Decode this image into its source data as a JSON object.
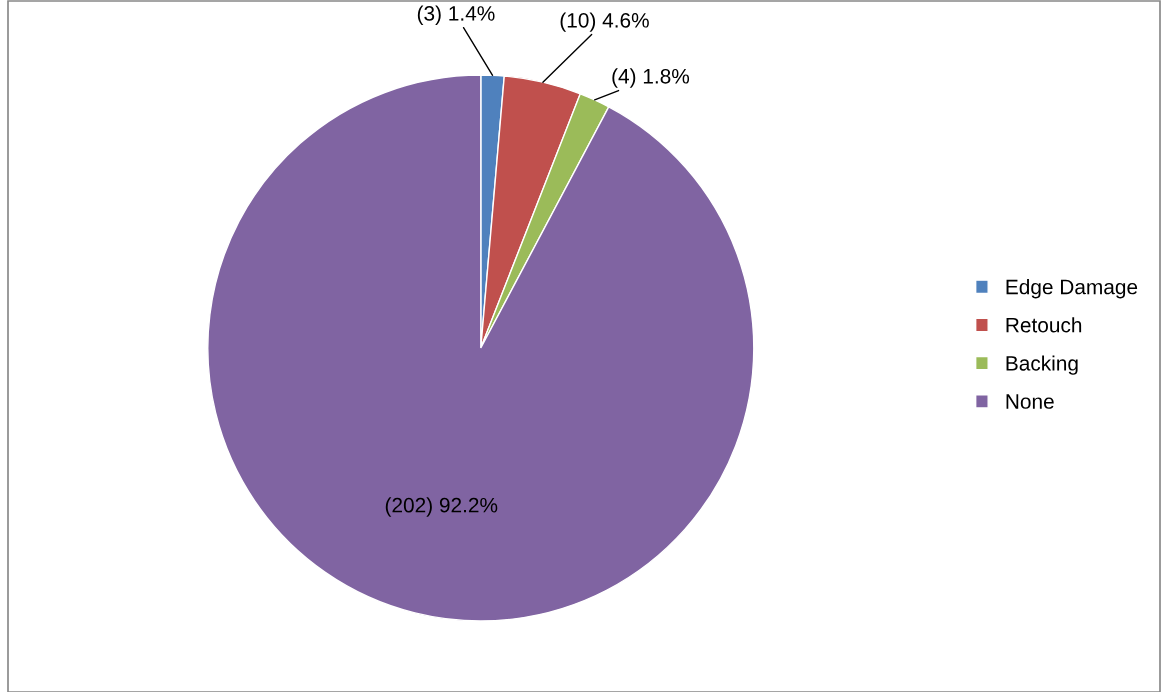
{
  "chart_data": {
    "type": "pie",
    "categories": [
      "Edge Damage",
      "Retouch",
      "Backing",
      "None"
    ],
    "values": [
      3,
      10,
      4,
      202
    ],
    "colors": [
      "#4f81bd",
      "#c0504d",
      "#9bbb59",
      "#8064a2"
    ],
    "value_labels": [
      "(3) 1.4%",
      "(10) 4.6%",
      "(4) 1.8%",
      "(202) 92.2%"
    ],
    "legend": "right"
  }
}
